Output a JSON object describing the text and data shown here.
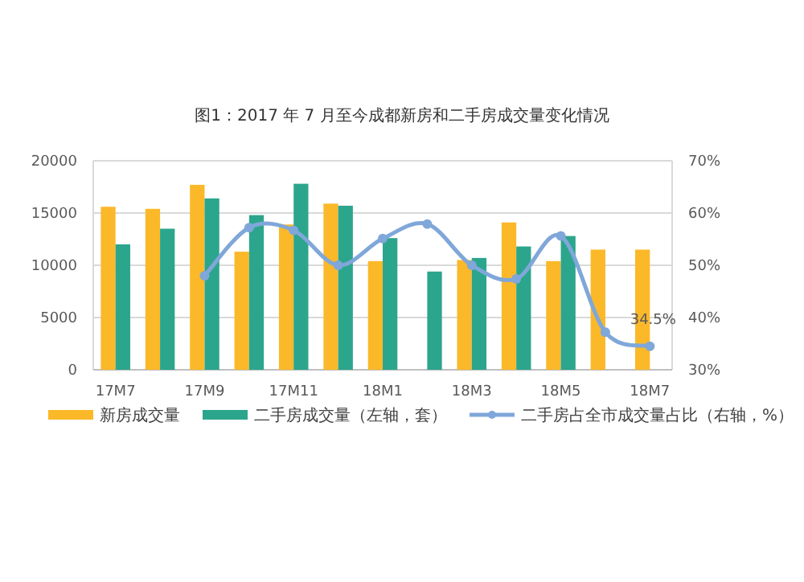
{
  "chart_data": {
    "type": "bar",
    "title": "图1：2017 年 7 月至今成都新房和二手房成交量变化情况",
    "categories": [
      "17M7",
      null,
      "17M9",
      null,
      "17M11",
      null,
      "18M1",
      null,
      "18M3",
      null,
      "18M5",
      null,
      "18M7"
    ],
    "series": [
      {
        "name": "新房成交量",
        "color": "#fbb829",
        "values": [
          15600,
          15400,
          17700,
          11300,
          13900,
          15900,
          10400,
          null,
          10500,
          14100,
          10400,
          11500,
          11500
        ]
      },
      {
        "name": "二手房成交量（左轴，套）",
        "color": "#2ca58d",
        "values": [
          12000,
          13500,
          16400,
          14800,
          17800,
          15700,
          12600,
          9400,
          10700,
          11800,
          12800,
          null,
          null
        ]
      },
      {
        "name": "二手房占全市成交量占比（右轴，%）",
        "color": "#7fa7d9",
        "type": "line",
        "axis": "y2",
        "marker": "circle",
        "values": [
          null,
          null,
          48,
          57.2,
          56.7,
          50,
          55.1,
          57.9,
          50,
          47.4,
          55.6,
          37.2,
          34.5
        ],
        "value_labels": [
          null,
          null,
          null,
          null,
          null,
          null,
          null,
          null,
          null,
          null,
          null,
          null,
          "34.5%"
        ]
      }
    ],
    "ylim": [
      0,
      20000
    ],
    "yticks": [
      0,
      5000,
      10000,
      15000,
      20000
    ],
    "y2lim": [
      30,
      70
    ],
    "y2ticks": [
      {
        "value": 30,
        "label": "30%"
      },
      {
        "value": 40,
        "label": "40%"
      },
      {
        "value": 50,
        "label": "50%"
      },
      {
        "value": 60,
        "label": "60%"
      },
      {
        "value": 70,
        "label": "70%"
      }
    ],
    "grid": "y",
    "legend": "bottom"
  }
}
